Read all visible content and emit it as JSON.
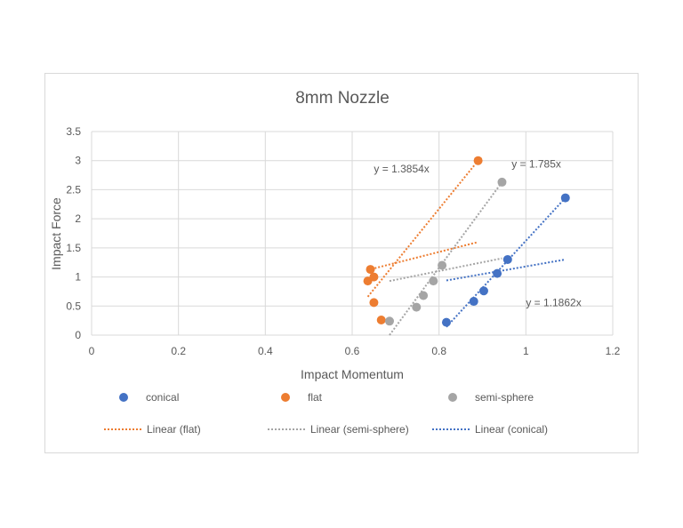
{
  "chart_data": {
    "type": "scatter",
    "title": "8mm Nozzle",
    "xlabel": "Impact Momentum",
    "ylabel": "Impact Force",
    "xlim": [
      0,
      1.2
    ],
    "ylim": [
      0,
      3.5
    ],
    "x_ticks": [
      "0",
      "0.2",
      "0.4",
      "0.6",
      "0.8",
      "1",
      "1.2"
    ],
    "y_ticks": [
      "0",
      "0.5",
      "1",
      "1.5",
      "2",
      "2.5",
      "3",
      "3.5"
    ],
    "grid": true,
    "legend_position": "bottom",
    "series": [
      {
        "name": "conical",
        "color": "#4472C4",
        "points": [
          [
            0.817,
            0.22
          ],
          [
            0.88,
            0.58
          ],
          [
            0.903,
            0.76
          ],
          [
            0.934,
            1.06
          ],
          [
            0.958,
            1.3
          ],
          [
            1.091,
            2.36
          ]
        ]
      },
      {
        "name": "flat",
        "color": "#ED7D31",
        "points": [
          [
            0.642,
            1.13
          ],
          [
            0.636,
            0.93
          ],
          [
            0.65,
            1.0
          ],
          [
            0.65,
            0.56
          ],
          [
            0.667,
            0.26
          ],
          [
            0.89,
            3.0
          ]
        ]
      },
      {
        "name": "semi-sphere",
        "color": "#A5A5A5",
        "points": [
          [
            0.686,
            0.24
          ],
          [
            0.748,
            0.48
          ],
          [
            0.764,
            0.68
          ],
          [
            0.787,
            0.93
          ],
          [
            0.807,
            1.2
          ],
          [
            0.945,
            2.63
          ]
        ]
      }
    ],
    "trendlines": [
      {
        "name": "Linear (flat)",
        "color": "#ED7D31",
        "segments": [
          {
            "x": [
              0.636,
              0.89
            ],
            "y": [
              0.66,
              3.0
            ]
          },
          {
            "x": [
              0.636,
              0.89
            ],
            "y": [
              1.12,
              1.6
            ]
          }
        ]
      },
      {
        "name": "Linear (semi-sphere)",
        "color": "#A5A5A5",
        "segments": [
          {
            "x": [
              0.686,
              0.945
            ],
            "y": [
              0.0,
              2.63
            ]
          },
          {
            "x": [
              0.686,
              0.945
            ],
            "y": [
              0.93,
              1.32
            ]
          }
        ]
      },
      {
        "name": "Linear (conical)",
        "color": "#4472C4",
        "segments": [
          {
            "x": [
              0.817,
              1.091
            ],
            "y": [
              0.14,
              2.36
            ]
          },
          {
            "x": [
              0.817,
              1.091
            ],
            "y": [
              0.94,
              1.3
            ]
          }
        ]
      }
    ],
    "annotations": [
      {
        "text": "y = 1.3854x",
        "x": 0.65,
        "y": 2.8
      },
      {
        "text": "y = 1.785x",
        "x": 0.967,
        "y": 2.88
      },
      {
        "text": "y = 1.1862x",
        "x": 1.0,
        "y": 0.5
      }
    ]
  }
}
